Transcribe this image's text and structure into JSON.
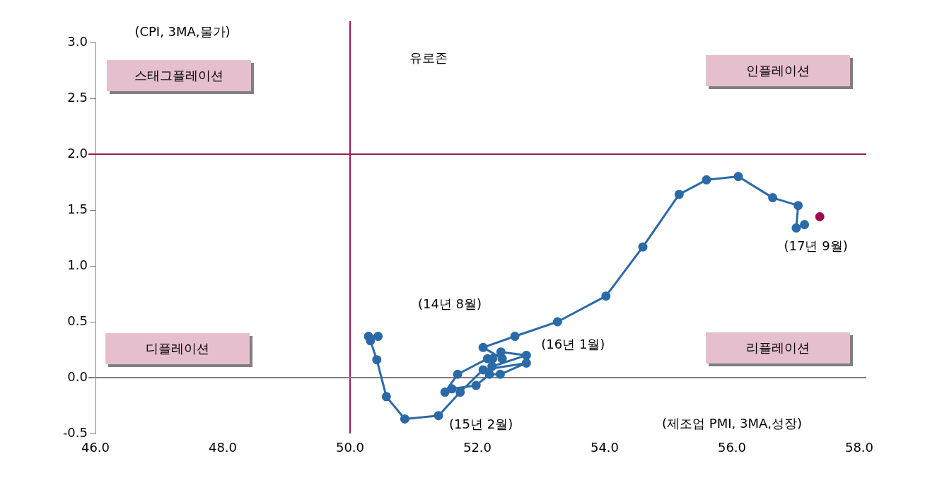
{
  "chart_data": {
    "type": "line",
    "xlabel": "(제조업 PMI, 3MA,성장)",
    "ylabel": "(CPI, 3MA,물가)",
    "xlim": [
      46,
      58
    ],
    "xticks": [
      {
        "value": 46,
        "label": "46.0"
      },
      {
        "value": 48,
        "label": "48.0"
      },
      {
        "value": 50,
        "label": "50.0"
      },
      {
        "value": 52,
        "label": "52.0"
      },
      {
        "value": 54,
        "label": "54.0"
      },
      {
        "value": 56,
        "label": "56.0"
      },
      {
        "value": 58,
        "label": "58.0"
      }
    ],
    "ylim": [
      -0.5,
      3
    ],
    "yticks": [
      {
        "value": -0.5,
        "label": "-0.5"
      },
      {
        "value": 0,
        "label": "0.0"
      },
      {
        "value": 0.5,
        "label": "0.5"
      },
      {
        "value": 1,
        "label": "1.0"
      },
      {
        "value": 1.5,
        "label": "1.5"
      },
      {
        "value": 2,
        "label": "2.0"
      },
      {
        "value": 2.5,
        "label": "2.5"
      },
      {
        "value": 3,
        "label": "3.0"
      }
    ],
    "grid": false,
    "legend": false,
    "marker": "circle",
    "line_style": "solid",
    "series": [
      {
        "color": "#2b6aa8",
        "x": [
          50.44,
          50.29,
          50.32,
          50.42,
          50.57,
          50.86,
          51.39,
          51.73,
          52.09,
          52.77,
          52.36,
          52.19,
          51.98,
          51.6,
          51.49,
          51.69,
          52.16,
          52.24,
          52.23,
          52.77,
          52.37,
          52.39,
          52.09,
          52.59,
          53.26,
          54.02,
          54.6,
          55.17,
          55.6,
          56.1,
          56.64,
          57.04,
          57.01,
          57.14
        ],
        "values": [
          0.37,
          0.37,
          0.33,
          0.16,
          -0.17,
          -0.37,
          -0.34,
          -0.13,
          0.07,
          0.13,
          0.03,
          0.03,
          -0.07,
          -0.1,
          -0.13,
          0.03,
          0.17,
          0.17,
          0.1,
          0.2,
          0.23,
          0.17,
          0.27,
          0.37,
          0.5,
          0.73,
          1.17,
          1.64,
          1.77,
          1.8,
          1.61,
          1.54,
          1.34,
          1.37
        ]
      },
      {
        "type": "scatter",
        "color": "#9b0a4a",
        "x": [
          57.38
        ],
        "values": [
          1.44
        ]
      }
    ],
    "ref_lines": [
      {
        "axis": "x",
        "value": 50,
        "color": "#9b1b55"
      },
      {
        "axis": "y",
        "value": 2,
        "color": "#9b1b55"
      },
      {
        "axis": "y",
        "value": 0,
        "color": "#808080"
      }
    ],
    "annotations": [
      "스태그플레이션",
      "인플레이션",
      "유로존",
      "디플레이션",
      "리플레이션",
      "(14년 8월)",
      {
        "text": "(15년 2월)",
        "x": 51.39,
        "y": -0.34
      },
      {
        "text": "(16년 1월)",
        "x": 52.77,
        "y": 0.2
      },
      {
        "text": "(17년 9월)",
        "x": 57.14,
        "y": 1.37
      }
    ]
  }
}
